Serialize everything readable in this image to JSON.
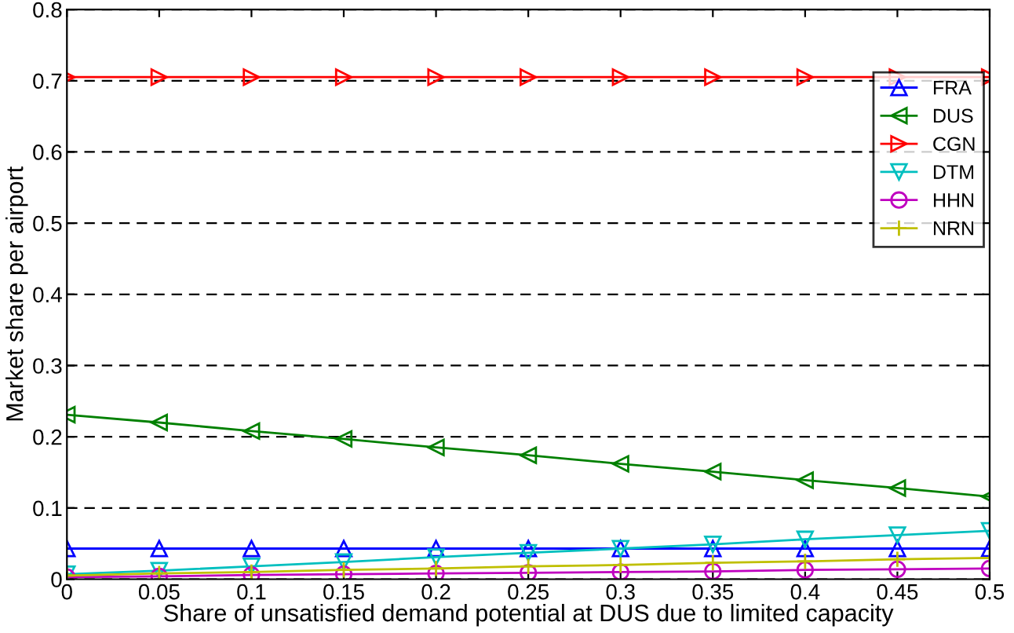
{
  "chart_data": {
    "type": "line",
    "xlabel": "Share of unsatisfied demand potential at DUS due to limited capacity",
    "ylabel": "Market share per airport",
    "x": [
      0,
      0.05,
      0.1,
      0.15,
      0.2,
      0.25,
      0.3,
      0.35,
      0.4,
      0.45,
      0.5
    ],
    "xlim": [
      0,
      0.5
    ],
    "xticks": [
      0,
      0.05,
      0.1,
      0.15,
      0.2,
      0.25,
      0.3,
      0.35,
      0.4,
      0.45,
      0.5
    ],
    "ylim": [
      0,
      0.8
    ],
    "yticks": [
      0,
      0.1,
      0.2,
      0.3,
      0.4,
      0.5,
      0.6,
      0.7,
      0.8
    ],
    "grid": "y",
    "legend": "top right",
    "series": [
      {
        "name": "FRA",
        "color": "#0000ff",
        "marker": "triangle",
        "values": [
          0.043,
          0.043,
          0.043,
          0.043,
          0.043,
          0.043,
          0.043,
          0.043,
          0.043,
          0.043,
          0.043
        ]
      },
      {
        "name": "DUS",
        "color": "#008000",
        "marker": "triangle_left",
        "values": [
          0.231,
          0.22,
          0.208,
          0.197,
          0.185,
          0.174,
          0.162,
          0.151,
          0.139,
          0.128,
          0.116
        ]
      },
      {
        "name": "CGN",
        "color": "#ff0000",
        "marker": "triangle_right",
        "values": [
          0.705,
          0.705,
          0.705,
          0.705,
          0.705,
          0.705,
          0.705,
          0.705,
          0.705,
          0.705,
          0.705
        ]
      },
      {
        "name": "DTM",
        "color": "#00bfbf",
        "marker": "triangle_down",
        "values": [
          0.007,
          0.012,
          0.018,
          0.024,
          0.031,
          0.037,
          0.043,
          0.049,
          0.056,
          0.062,
          0.068
        ]
      },
      {
        "name": "HHN",
        "color": "#bf00bf",
        "marker": "circle",
        "values": [
          0.003,
          0.004,
          0.006,
          0.007,
          0.008,
          0.009,
          0.01,
          0.011,
          0.013,
          0.014,
          0.015
        ]
      },
      {
        "name": "NRN",
        "color": "#bfbf00",
        "marker": "cross",
        "values": [
          0.005,
          0.008,
          0.01,
          0.013,
          0.015,
          0.018,
          0.02,
          0.023,
          0.025,
          0.028,
          0.03
        ]
      }
    ]
  }
}
